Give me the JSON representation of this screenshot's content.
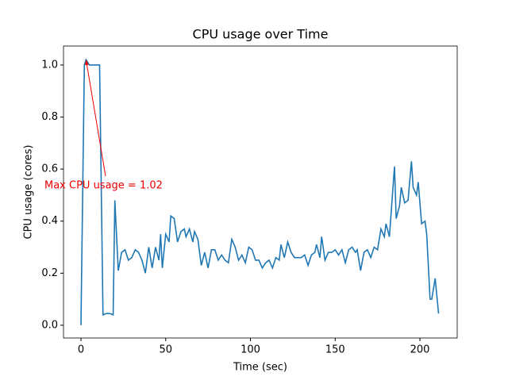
{
  "chart_data": {
    "type": "line",
    "title": "CPU usage over Time",
    "xlabel": "Time (sec)",
    "ylabel": "CPU usage (cores)",
    "x": [
      0,
      2,
      3,
      5,
      9,
      11,
      13,
      15,
      17,
      19,
      20,
      22,
      24,
      26,
      28,
      30,
      32,
      34,
      36,
      38,
      40,
      42,
      44,
      46,
      47,
      48,
      50,
      52,
      53,
      55,
      57,
      59,
      61,
      62,
      64,
      66,
      67,
      69,
      71,
      73,
      75,
      77,
      79,
      81,
      83,
      85,
      87,
      89,
      91,
      93,
      95,
      97,
      99,
      101,
      103,
      105,
      107,
      109,
      111,
      113,
      115,
      117,
      118,
      120,
      122,
      124,
      126,
      128,
      130,
      132,
      134,
      136,
      138,
      139,
      141,
      142,
      144,
      146,
      148,
      150,
      152,
      154,
      156,
      158,
      160,
      162,
      163,
      165,
      167,
      169,
      171,
      173,
      175,
      177,
      179,
      180,
      182,
      183,
      185,
      186,
      188,
      189,
      191,
      193,
      195,
      196,
      198,
      199,
      201,
      203,
      204,
      206,
      207,
      209,
      211
    ],
    "series": [
      {
        "name": "CPU usage",
        "color": "#1f77b4",
        "values": [
          0.0,
          1.0,
          1.02,
          1.0,
          1.0,
          1.0,
          0.04,
          0.045,
          0.045,
          0.04,
          0.48,
          0.21,
          0.28,
          0.29,
          0.25,
          0.26,
          0.29,
          0.28,
          0.25,
          0.2,
          0.3,
          0.22,
          0.3,
          0.25,
          0.35,
          0.22,
          0.35,
          0.32,
          0.42,
          0.41,
          0.32,
          0.36,
          0.37,
          0.34,
          0.37,
          0.32,
          0.36,
          0.33,
          0.23,
          0.28,
          0.22,
          0.29,
          0.29,
          0.25,
          0.27,
          0.25,
          0.24,
          0.33,
          0.3,
          0.25,
          0.27,
          0.24,
          0.3,
          0.29,
          0.25,
          0.25,
          0.22,
          0.24,
          0.25,
          0.22,
          0.26,
          0.25,
          0.31,
          0.26,
          0.32,
          0.28,
          0.26,
          0.26,
          0.26,
          0.27,
          0.23,
          0.27,
          0.28,
          0.31,
          0.26,
          0.34,
          0.25,
          0.28,
          0.28,
          0.29,
          0.27,
          0.29,
          0.24,
          0.29,
          0.3,
          0.28,
          0.29,
          0.21,
          0.28,
          0.29,
          0.26,
          0.3,
          0.29,
          0.37,
          0.34,
          0.39,
          0.34,
          0.43,
          0.61,
          0.41,
          0.46,
          0.53,
          0.47,
          0.48,
          0.63,
          0.53,
          0.5,
          0.55,
          0.39,
          0.4,
          0.35,
          0.1,
          0.1,
          0.18,
          0.045
        ]
      }
    ],
    "annotation": "Max CPU usage = 1.02",
    "xlim": [
      -10.3,
      222
    ],
    "ylim": [
      -0.049,
      1.073
    ],
    "xticks": [
      0,
      50,
      100,
      150,
      200
    ],
    "yticks": [
      {
        "value": 0,
        "label": "0.0"
      },
      0.2,
      0.4,
      0.6,
      0.8,
      {
        "value": 1,
        "label": "1.0"
      }
    ]
  }
}
